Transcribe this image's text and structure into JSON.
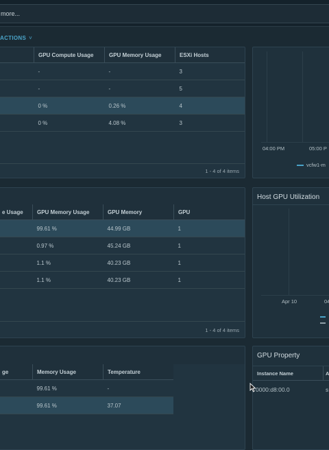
{
  "search": {
    "text": "more..."
  },
  "actions": {
    "label": "ACTIONS",
    "chevron": "˅"
  },
  "clusters": {
    "headers": [
      "GPU Compute Usage",
      "GPU Memory Usage",
      "ESXi Hosts"
    ],
    "rows": [
      [
        "-",
        "-",
        "3"
      ],
      [
        "-",
        "-",
        "5"
      ],
      [
        "0 %",
        "0.26 %",
        "4"
      ],
      [
        "0 %",
        "4.08 %",
        "3"
      ]
    ],
    "footer": "1 - 4 of 4 items"
  },
  "hosts": {
    "headers": [
      "e Usage",
      "GPU Memory Usage",
      "GPU Memory",
      "GPU"
    ],
    "rows": [
      [
        "",
        "99.61 %",
        "44.99 GB",
        "1"
      ],
      [
        "",
        "0.97 %",
        "45.24 GB",
        "1"
      ],
      [
        "",
        "1.1 %",
        "40.23 GB",
        "1"
      ],
      [
        "",
        "1.1 %",
        "40.23 GB",
        "1"
      ]
    ],
    "footer": "1 - 4 of 4 items"
  },
  "gpus": {
    "headers": [
      "ge",
      "Memory Usage",
      "Temperature"
    ],
    "rows": [
      [
        "",
        "99.61 %",
        "-"
      ],
      [
        "",
        "99.61 %",
        "37.07"
      ]
    ]
  },
  "top_chart": {
    "ticks": [
      "04:00 PM",
      "05:00 P"
    ],
    "legend": "vcfw1-m"
  },
  "host_chart": {
    "title": "Host GPU Utilization",
    "ticks": [
      "Apr 10",
      "04"
    ]
  },
  "gpu_property": {
    "title": "GPU Property",
    "headers": [
      "Instance Name",
      "A"
    ],
    "instance": "0000:d8:00.0",
    "trunc": "s"
  },
  "colors": {
    "accent": "#4aa3c8",
    "warn": "#e58d3c",
    "ok": "#9bc46c"
  }
}
